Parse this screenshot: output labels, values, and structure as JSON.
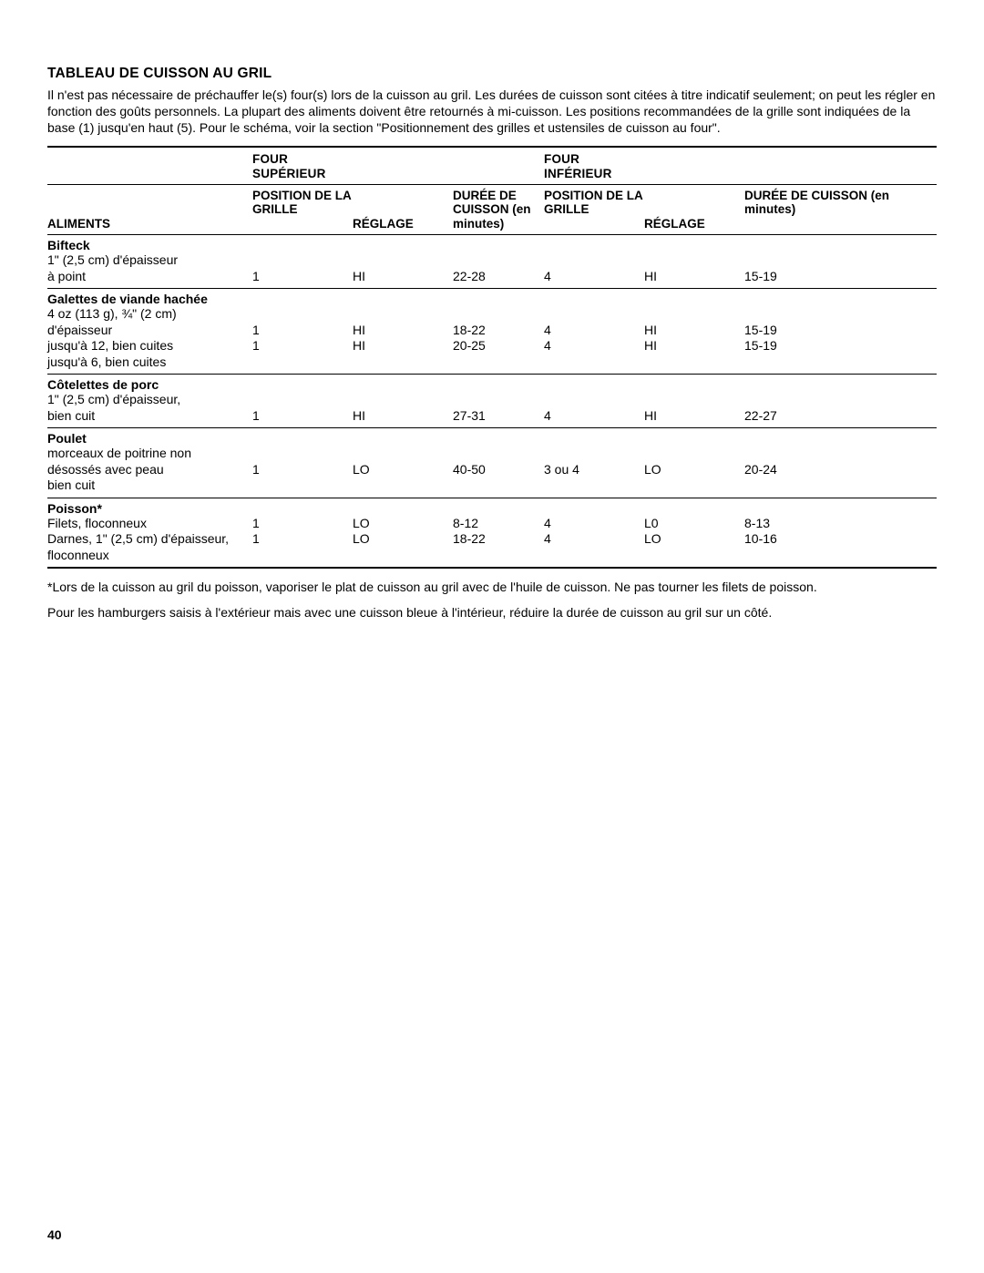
{
  "title": "TABLEAU DE CUISSON AU GRIL",
  "intro": "Il n'est pas nécessaire de préchauffer le(s) four(s) lors de la cuisson au gril. Les durées de cuisson sont citées à titre indicatif seulement; on peut les régler en fonction des goûts personnels. La plupart des aliments doivent être retournés à mi-cuisson. Les positions recommandées de la grille sont indiquées de la base (1) jusqu'en haut (5). Pour le schéma, voir la section \"Positionnement des grilles et ustensiles de cuisson au four\".",
  "group_headers": {
    "upper": "FOUR SUPÉRIEUR",
    "lower": "FOUR INFÉRIEUR"
  },
  "col_headers": {
    "aliments": "ALIMENTS",
    "position": "POSITION DE LA GRILLE",
    "reglage": "RÉGLAGE",
    "duree": "DURÉE DE CUISSON (en minutes)"
  },
  "sections": [
    {
      "title": "Bifteck",
      "rows": [
        {
          "label": "1\" (2,5 cm) d'épaisseur",
          "pos1": "",
          "reg1": "",
          "dur1": "",
          "pos2": "",
          "reg2": "",
          "dur2": ""
        },
        {
          "label": "à point",
          "pos1": "1",
          "reg1": "HI",
          "dur1": "22-28",
          "pos2": "4",
          "reg2": "HI",
          "dur2": "15-19"
        }
      ]
    },
    {
      "title": "Galettes de viande hachée",
      "rows": [
        {
          "label": "4 oz (113 g), ¾\" (2 cm)",
          "pos1": "",
          "reg1": "",
          "dur1": "",
          "pos2": "",
          "reg2": "",
          "dur2": ""
        },
        {
          "label": "d'épaisseur",
          "pos1": "1",
          "reg1": "HI",
          "dur1": "18-22",
          "pos2": "4",
          "reg2": "HI",
          "dur2": "15-19"
        },
        {
          "label": "jusqu'à 12, bien cuites",
          "pos1": "1",
          "reg1": "HI",
          "dur1": "20-25",
          "pos2": "4",
          "reg2": "HI",
          "dur2": "15-19"
        },
        {
          "label": "jusqu'à 6, bien cuites",
          "pos1": "",
          "reg1": "",
          "dur1": "",
          "pos2": "",
          "reg2": "",
          "dur2": ""
        }
      ]
    },
    {
      "title": "Côtelettes de porc",
      "rows": [
        {
          "label": "1\" (2,5 cm) d'épaisseur,",
          "pos1": "",
          "reg1": "",
          "dur1": "",
          "pos2": "",
          "reg2": "",
          "dur2": ""
        },
        {
          "label": "bien cuit",
          "pos1": "1",
          "reg1": "HI",
          "dur1": "27-31",
          "pos2": "4",
          "reg2": "HI",
          "dur2": "22-27"
        }
      ]
    },
    {
      "title": "Poulet",
      "rows": [
        {
          "label": "morceaux de poitrine non",
          "pos1": "",
          "reg1": "",
          "dur1": "",
          "pos2": "",
          "reg2": "",
          "dur2": ""
        },
        {
          "label": "désossés avec peau",
          "pos1": "1",
          "reg1": "LO",
          "dur1": "40-50",
          "pos2": "3 ou 4",
          "reg2": "LO",
          "dur2": "20-24"
        },
        {
          "label": "bien cuit",
          "pos1": "",
          "reg1": "",
          "dur1": "",
          "pos2": "",
          "reg2": "",
          "dur2": ""
        }
      ]
    },
    {
      "title": "Poisson*",
      "rows": [
        {
          "label": "Filets, floconneux",
          "pos1": "1",
          "reg1": "LO",
          "dur1": "8-12",
          "pos2": "4",
          "reg2": "L0",
          "dur2": "8-13"
        },
        {
          "label": "Darnes, 1\" (2,5 cm) d'épaisseur,",
          "pos1": "1",
          "reg1": "LO",
          "dur1": "18-22",
          "pos2": "4",
          "reg2": "LO",
          "dur2": "10-16"
        },
        {
          "label": "floconneux",
          "pos1": "",
          "reg1": "",
          "dur1": "",
          "pos2": "",
          "reg2": "",
          "dur2": ""
        }
      ]
    }
  ],
  "footnote1": "*Lors de la cuisson au gril du poisson, vaporiser le plat de cuisson au gril avec de l'huile de cuisson. Ne pas tourner les filets de poisson.",
  "footnote2": "Pour les hamburgers saisis à l'extérieur mais avec une cuisson bleue à l'intérieur, réduire la durée de cuisson au gril sur un côté.",
  "page_number": "40"
}
